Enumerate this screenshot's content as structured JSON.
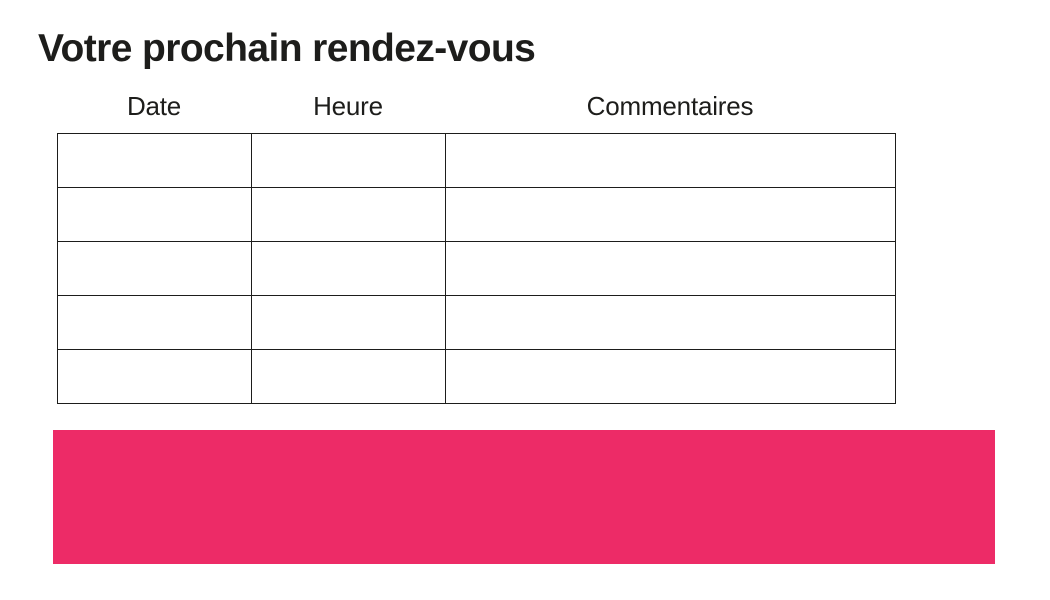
{
  "page": {
    "title": "Votre prochain rendez-vous"
  },
  "table": {
    "columns": [
      {
        "key": "date",
        "label": "Date"
      },
      {
        "key": "heure",
        "label": "Heure"
      },
      {
        "key": "commentaires",
        "label": "Commentaires"
      }
    ],
    "rows": [
      {
        "date": "",
        "heure": "",
        "commentaires": ""
      },
      {
        "date": "",
        "heure": "",
        "commentaires": ""
      },
      {
        "date": "",
        "heure": "",
        "commentaires": ""
      },
      {
        "date": "",
        "heure": "",
        "commentaires": ""
      },
      {
        "date": "",
        "heure": "",
        "commentaires": ""
      }
    ]
  },
  "banner": {
    "text": ""
  },
  "colors": {
    "accent_pink": "#ED2B67",
    "text": "#1D1D1B",
    "table_border": "#1D1D1B",
    "background": "#FFFFFF"
  }
}
